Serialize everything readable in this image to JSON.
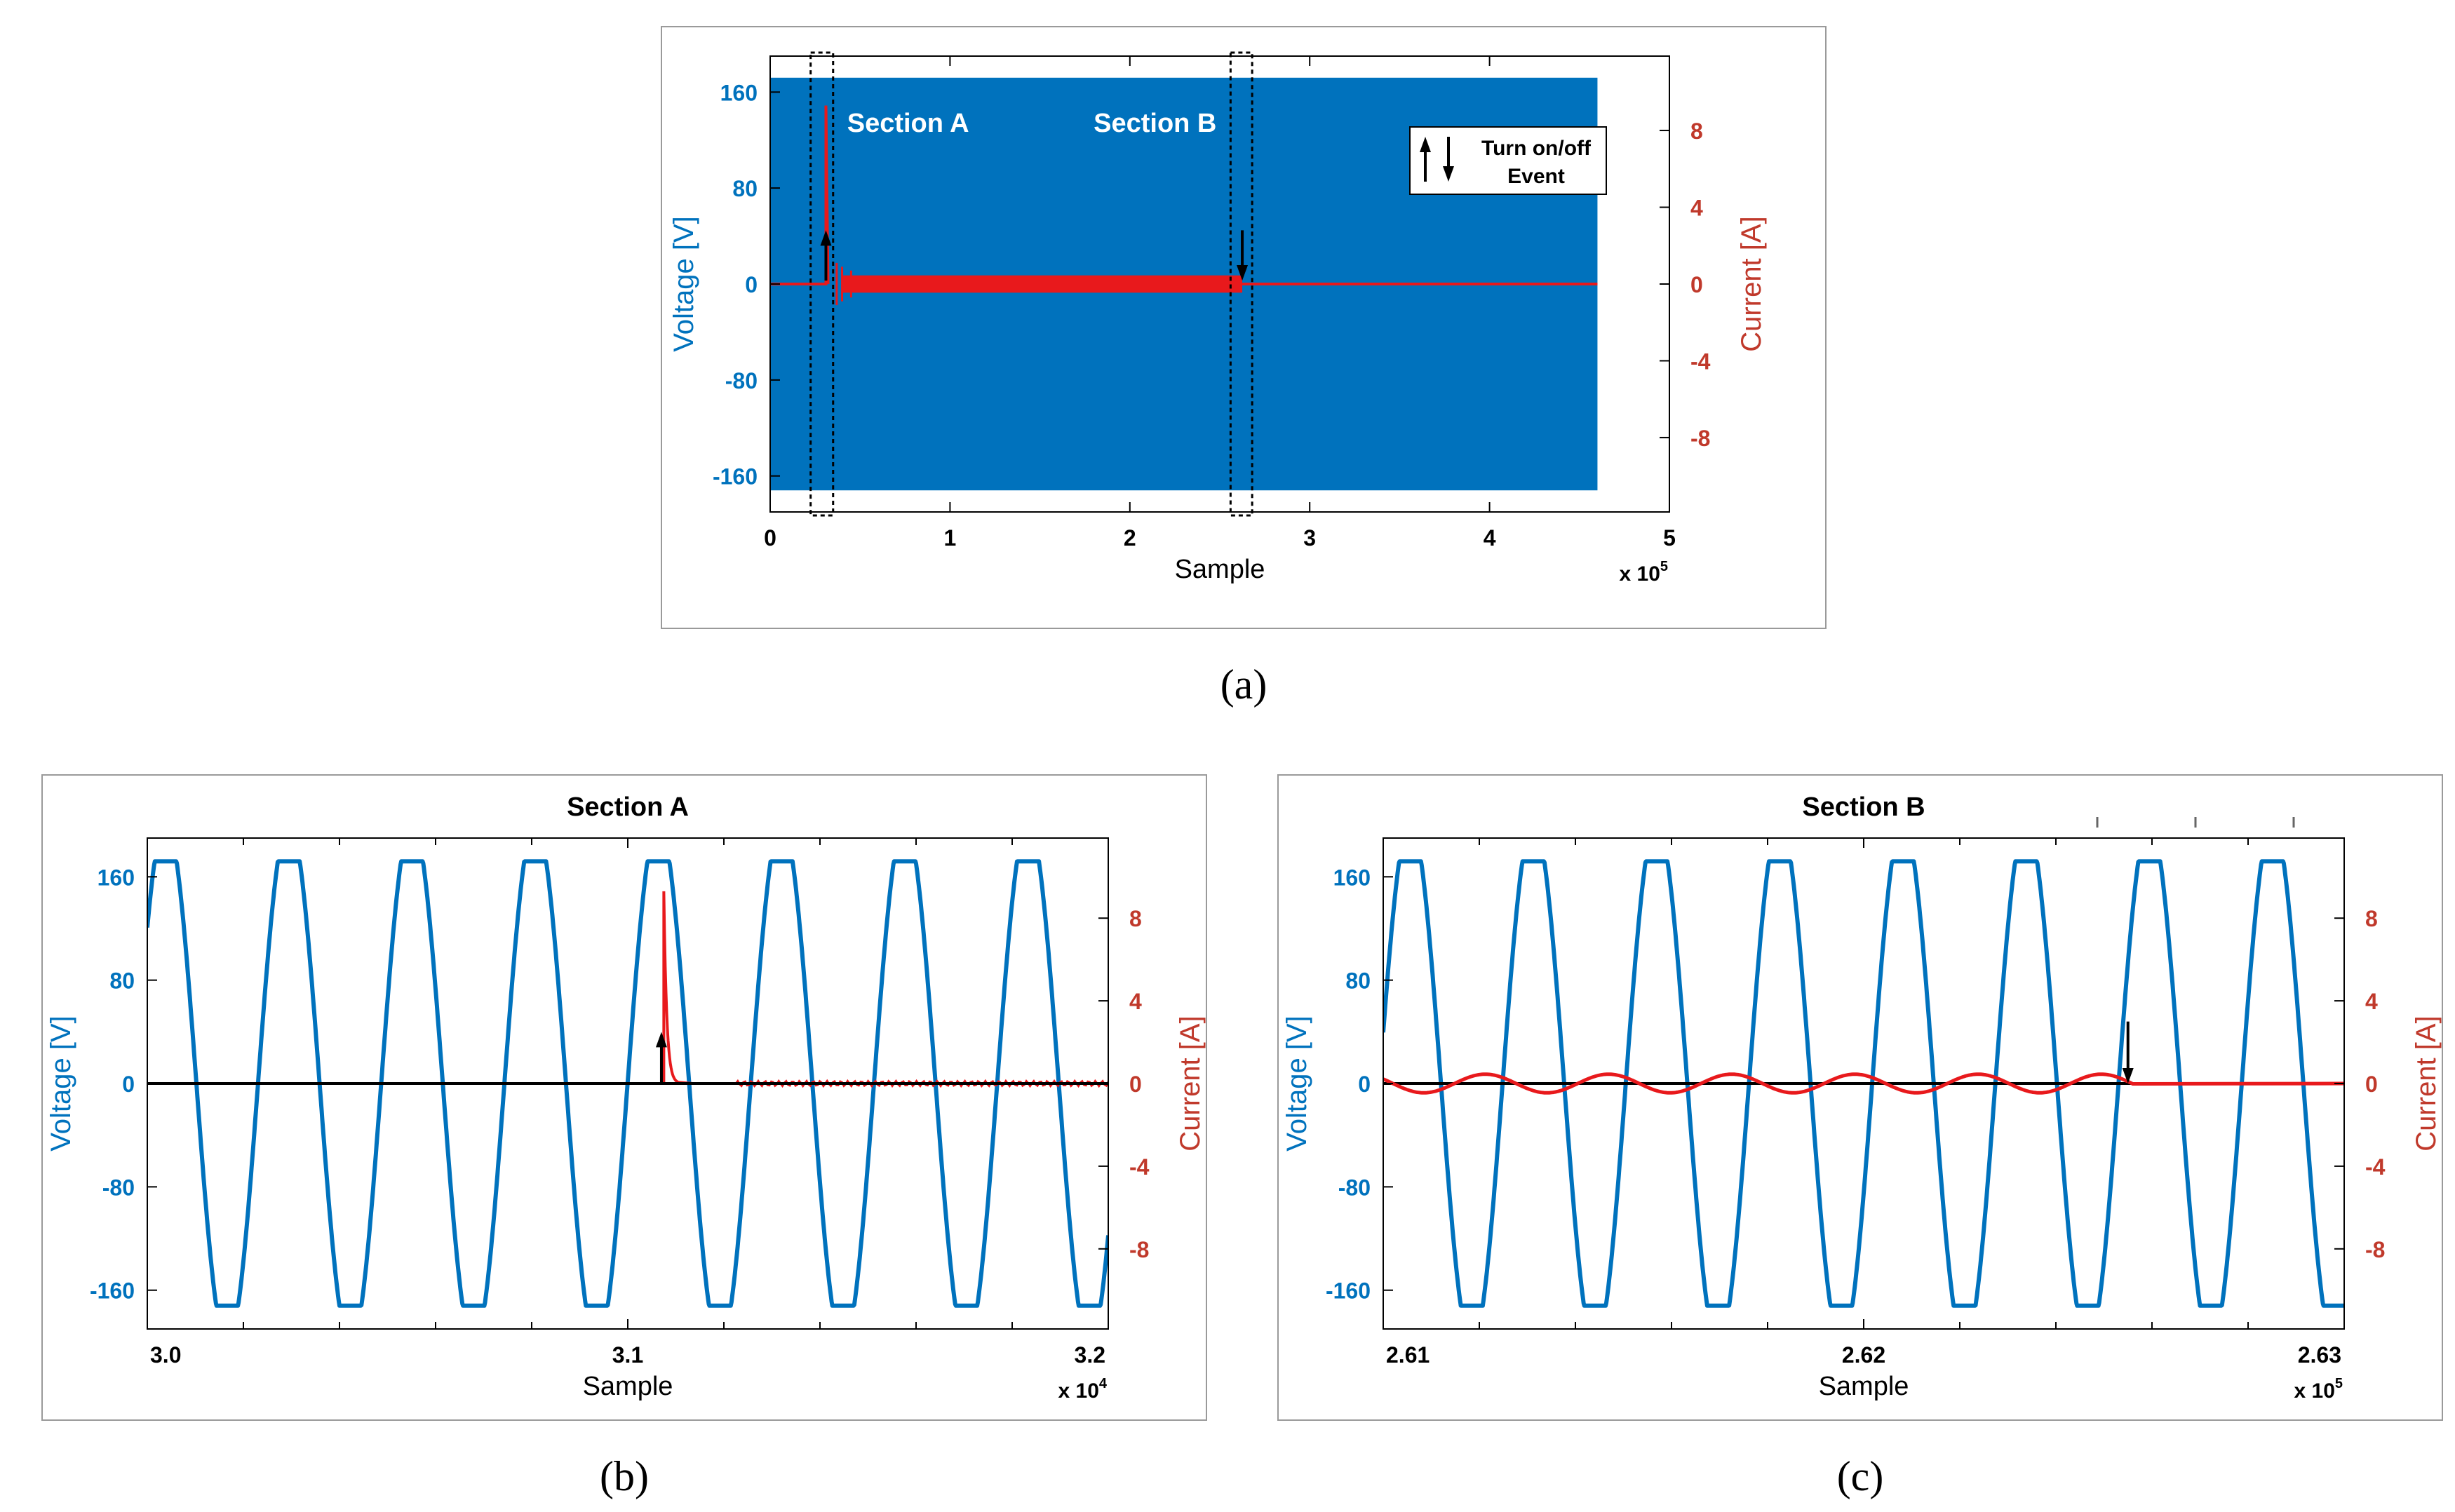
{
  "colors": {
    "voltage": "#0072BD",
    "current": "#E8191C",
    "accent_axis": "#C0392B",
    "event": "#000000",
    "frame": "#9A9A9A"
  },
  "chart_data": [
    {
      "id": "a",
      "type": "line",
      "caption": "(a)",
      "title": "",
      "xlabel": "Sample",
      "x_multiplier": "x 10",
      "x_exponent": "5",
      "xlim": [
        0,
        500000
      ],
      "x_ticks": [
        0,
        100000,
        200000,
        300000,
        400000,
        500000
      ],
      "x_tick_labels": [
        "0",
        "1",
        "2",
        "3",
        "4",
        "5"
      ],
      "ylabel_left": "Voltage [V]",
      "ylabel_right": "Current [A]",
      "ylim_left": [
        -190,
        190
      ],
      "ylim_right": [
        -11.875,
        11.875
      ],
      "y_ticks_left": [
        "160",
        "80",
        "0",
        "-80",
        "-160"
      ],
      "y_ticks_right": [
        "8",
        "4",
        "0",
        "-4",
        "-8"
      ],
      "annotations": [
        "Section A",
        "Section B"
      ],
      "legend": {
        "label_line1": "Turn on/off",
        "label_line2": "Event",
        "position": "upper-right"
      },
      "series": [
        {
          "name": "Voltage [V]",
          "axis": "left",
          "style": "dense band",
          "x_range": [
            0,
            460000
          ],
          "amplitude": 172
        },
        {
          "name": "Current [A]",
          "axis": "right",
          "on_sample": 31000,
          "off_sample": 262500,
          "peak": 9.3,
          "steady_ripple": 0.45
        }
      ],
      "events": [
        {
          "type": "on",
          "sample": 31000
        },
        {
          "type": "off",
          "sample": 262500
        }
      ],
      "sections": [
        {
          "name": "Section A",
          "x_range": [
            22500,
            35000
          ]
        },
        {
          "name": "Section B",
          "x_range": [
            256000,
            268000
          ]
        }
      ]
    },
    {
      "id": "b",
      "type": "line",
      "caption": "(b)",
      "title": "Section A",
      "xlabel": "Sample",
      "x_multiplier": "x 10",
      "x_exponent": "4",
      "xlim": [
        30000,
        32000
      ],
      "x_ticks": [
        30000,
        31000,
        32000
      ],
      "x_tick_labels": [
        "3.0",
        "3.1",
        "3.2"
      ],
      "ylabel_left": "Voltage [V]",
      "ylabel_right": "Current [A]",
      "ylim_left": [
        -190,
        190
      ],
      "ylim_right": [
        -11.875,
        11.875
      ],
      "y_ticks_left": [
        "160",
        "80",
        "0",
        "-80",
        "-160"
      ],
      "y_ticks_right": [
        "8",
        "4",
        "0",
        "-4",
        "-8"
      ],
      "voltage": {
        "amplitude": 172,
        "period_samples": 256.4,
        "phase_zero_sample": 29974
      },
      "current": {
        "event_sample": 31075,
        "peak": 9.3
      },
      "events": [
        {
          "type": "on",
          "sample": 31070
        }
      ]
    },
    {
      "id": "c",
      "type": "line",
      "caption": "(c)",
      "title": "Section B",
      "xlabel": "Sample",
      "x_multiplier": "x 10",
      "x_exponent": "5",
      "xlim": [
        261000,
        263000
      ],
      "x_ticks": [
        261000,
        262000,
        263000
      ],
      "x_tick_labels": [
        "2.61",
        "2.62",
        "2.63"
      ],
      "ylabel_left": "Voltage [V]",
      "ylabel_right": "Current [A]",
      "ylim_left": [
        -190,
        190
      ],
      "ylim_right": [
        -11.875,
        11.875
      ],
      "y_ticks_left": [
        "160",
        "80",
        "0",
        "-80",
        "-160"
      ],
      "y_ticks_right": [
        "8",
        "4",
        "0",
        "-4",
        "-8"
      ],
      "voltage": {
        "amplitude": 172,
        "period_samples": 256.4,
        "phase_zero_sample": 260992
      },
      "current": {
        "off_sample": 262560,
        "ripple": 0.45
      },
      "events": [
        {
          "type": "off",
          "sample": 262550
        }
      ]
    }
  ]
}
